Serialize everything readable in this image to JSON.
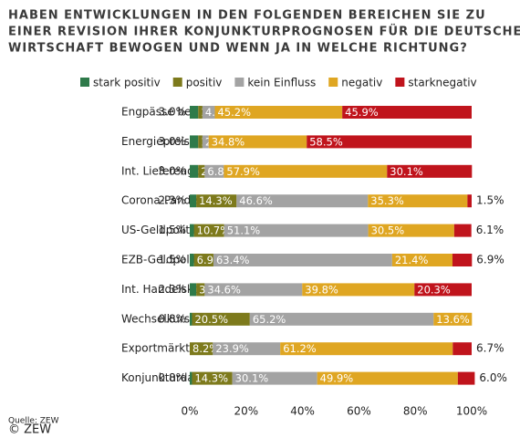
{
  "chart_data": {
    "type": "stacked_barh",
    "title": [
      "HABEN ENTWICKLUNGEN IN DEN FOLGENDEN BEREICHEN SIE ZU",
      "EINER REVISION IHRER KONJUNKTURPROGNOSEN FÜR DIE DEUTSCHE",
      "WIRTSCHAFT BEWOGEN UND WENN JA IN WELCHE RICHTUNG?"
    ],
    "categories": [
      "Engpässe bei Rohstoffen",
      "Energiepreise",
      "Int. Lieferengpässe",
      "Corona-Pandemie",
      "US-Geldpolitik",
      "EZB-Geldpolitik",
      "Int. Handelskonflikte",
      "Wechselkurse",
      "Exportmärkte",
      "Konjunkturdaten DE"
    ],
    "series": [
      {
        "name": "stark positiv",
        "color": "#2e7a4a",
        "values": [
          3.0,
          3.0,
          3.0,
          2.3,
          1.5,
          1.5,
          2.3,
          0.8,
          null,
          0.8
        ],
        "value_labels": [
          "3.0%",
          "3.0%",
          "3.0%",
          "2.3%",
          "1.5%",
          "1.5%",
          "2.3%",
          "0.8%",
          null,
          "0.8%"
        ]
      },
      {
        "name": "positiv",
        "color": "#7d7a1c",
        "values": [
          1.5,
          1.5,
          2.3,
          14.3,
          10.7,
          6.9,
          3.0,
          20.5,
          8.2,
          14.3
        ],
        "value_labels": [
          "1.5%",
          "1.5%",
          "2.3%",
          "14.3%",
          "10.7%",
          "6.9%",
          "3.0%",
          "20.5%",
          "8.2%",
          "14.3%"
        ]
      },
      {
        "name": "kein Einfluss",
        "color": "#a3a3a3",
        "values": [
          4.4,
          2.2,
          6.8,
          46.6,
          51.1,
          63.4,
          34.6,
          65.2,
          23.9,
          30.1
        ],
        "value_labels": [
          "4.4%",
          "2.2%",
          "6.8%",
          "46.6%",
          "51.1%",
          "63.4%",
          "34.6%",
          "65.2%",
          "23.9%",
          "30.1%"
        ]
      },
      {
        "name": "negativ",
        "color": "#dfa622",
        "values": [
          45.2,
          34.8,
          57.9,
          35.3,
          30.5,
          21.4,
          39.8,
          13.6,
          61.2,
          49.9
        ],
        "value_labels": [
          "45.2%",
          "34.8%",
          "57.9%",
          "35.3%",
          "30.5%",
          "21.4%",
          "39.8%",
          "13.6%",
          "61.2%",
          "49.9%"
        ]
      },
      {
        "name": "starknegativ",
        "color": "#c0141c",
        "values": [
          45.9,
          58.5,
          30.1,
          1.5,
          6.1,
          6.9,
          20.3,
          null,
          6.7,
          6.0
        ],
        "value_labels": [
          "45.9%",
          "58.5%",
          "30.1%",
          "1.5%",
          "6.1%",
          "6.9%",
          "20.3%",
          null,
          "6.7%",
          "6.0%"
        ]
      }
    ],
    "xlim": [
      0,
      100
    ],
    "xticks": [
      {
        "value": 0,
        "label": "0%"
      },
      {
        "value": 20,
        "label": "20%"
      },
      {
        "value": 40,
        "label": "40%"
      },
      {
        "value": 60,
        "label": "60%"
      },
      {
        "value": 80,
        "label": "80%"
      },
      {
        "value": 100,
        "label": "100%"
      }
    ],
    "source": "Quelle: ZEW",
    "copyright": "© ZEW"
  }
}
